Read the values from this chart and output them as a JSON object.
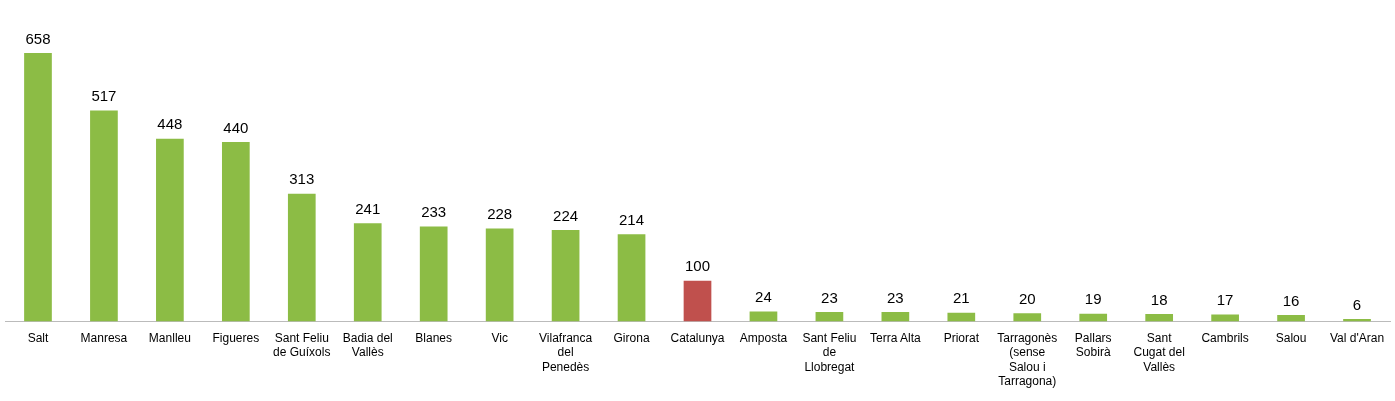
{
  "chart_data": {
    "type": "bar",
    "categories": [
      "Salt",
      "Manresa",
      "Manlleu",
      "Figueres",
      "Sant Feliu de Guíxols",
      "Badia del Vallès",
      "Blanes",
      "Vic",
      "Vilafranca del Penedès",
      "Girona",
      "Catalunya",
      "Amposta",
      "Sant Feliu de Llobregat",
      "Terra Alta",
      "Priorat",
      "Tarragonès (sense Salou i Tarragona)",
      "Pallars Sobirà",
      "Sant Cugat del Vallès",
      "Cambrils",
      "Salou",
      "Val d'Aran"
    ],
    "values": [
      658,
      517,
      448,
      440,
      313,
      241,
      233,
      228,
      224,
      214,
      100,
      24,
      23,
      23,
      21,
      20,
      19,
      18,
      17,
      16,
      6
    ],
    "colors": [
      "#8cbc45",
      "#8cbc45",
      "#8cbc45",
      "#8cbc45",
      "#8cbc45",
      "#8cbc45",
      "#8cbc45",
      "#8cbc45",
      "#8cbc45",
      "#8cbc45",
      "#c0504d",
      "#8cbc45",
      "#8cbc45",
      "#8cbc45",
      "#8cbc45",
      "#8cbc45",
      "#8cbc45",
      "#8cbc45",
      "#8cbc45",
      "#8cbc45",
      "#8cbc45"
    ],
    "data_labels": true,
    "grid": false,
    "legend": false
  }
}
